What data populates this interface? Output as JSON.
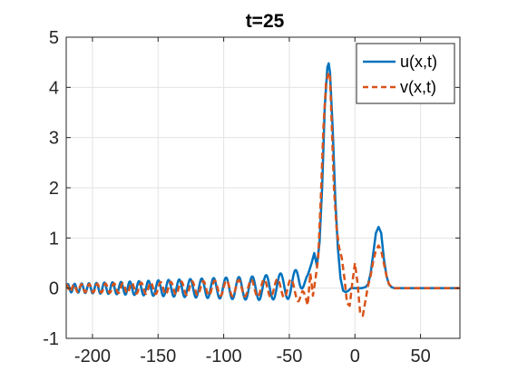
{
  "chart_data": {
    "type": "line",
    "title": "t=25",
    "xlabel": "",
    "ylabel": "",
    "xlim": [
      -220,
      80
    ],
    "ylim": [
      -1,
      5
    ],
    "xticks": [
      -200,
      -150,
      -100,
      -50,
      0,
      50
    ],
    "yticks": [
      -1,
      0,
      1,
      2,
      3,
      4,
      5
    ],
    "grid": true,
    "legend": {
      "position": "top-right",
      "entries": [
        "u(x,t)",
        "v(x,t)"
      ]
    },
    "colors": {
      "u": "#0072BD",
      "v": "#D95319"
    },
    "series": [
      {
        "name": "u(x,t)",
        "style": "solid",
        "x": [
          -220,
          -200,
          -175,
          -150,
          -125,
          -100,
          -75,
          -50,
          -42,
          -36,
          -33,
          -31,
          -29,
          -27,
          -25,
          -23,
          -21,
          -20,
          -19,
          -17,
          -15,
          -13,
          -11,
          -9,
          -7,
          -5,
          -3,
          0,
          5,
          8,
          10,
          12,
          14,
          16,
          18,
          20,
          22,
          24,
          26,
          28,
          30,
          40,
          60,
          80
        ],
        "y": [
          0,
          0,
          0,
          0,
          0,
          0,
          0,
          0.05,
          0.12,
          0.25,
          0.5,
          0.7,
          0.45,
          0.9,
          2.0,
          3.6,
          4.4,
          4.48,
          4.3,
          3.2,
          1.8,
          0.8,
          0.2,
          -0.05,
          -0.08,
          -0.05,
          0,
          0,
          0,
          0.02,
          0.08,
          0.3,
          0.7,
          1.1,
          1.22,
          1.1,
          0.6,
          0.25,
          0.07,
          0.02,
          0,
          0,
          0,
          0
        ]
      },
      {
        "name": "v(x,t)",
        "style": "dashed",
        "x": [
          -220,
          -200,
          -175,
          -150,
          -125,
          -100,
          -75,
          -50,
          -40,
          -36,
          -34,
          -32,
          -30,
          -28,
          -26,
          -24,
          -22,
          -20,
          -19,
          -18,
          -16,
          -14,
          -12,
          -10,
          -8,
          -6,
          -4,
          -2,
          0,
          2,
          4,
          6,
          8,
          10,
          12,
          14,
          16,
          18,
          20,
          22,
          24,
          26,
          28,
          30,
          40,
          60,
          80
        ],
        "y": [
          0,
          0,
          0,
          0,
          0,
          0,
          0,
          0,
          -0.1,
          -0.35,
          0.3,
          -0.15,
          0.2,
          0.6,
          1.8,
          3.2,
          4.1,
          4.3,
          4.2,
          3.5,
          2.0,
          1.2,
          0.8,
          0.6,
          0.2,
          -0.3,
          -0.35,
          0.1,
          0.5,
          0.1,
          -0.5,
          -0.55,
          -0.25,
          0.05,
          0.25,
          0.55,
          0.75,
          0.85,
          0.75,
          0.5,
          0.25,
          0.08,
          0.02,
          0,
          0,
          0,
          0
        ]
      }
    ],
    "oscillation": {
      "description_note_for_script_only": false,
      "x_start": -220,
      "x_end": -35,
      "u_amplitude_start": 0.08,
      "u_amplitude_end": 0.28,
      "v_amplitude_start": 0.07,
      "v_amplitude_end": 0.2,
      "u_wavelength_start": 5,
      "u_wavelength_end": 12,
      "v_wavelength_start": 5.5,
      "v_wavelength_end": 11
    }
  }
}
